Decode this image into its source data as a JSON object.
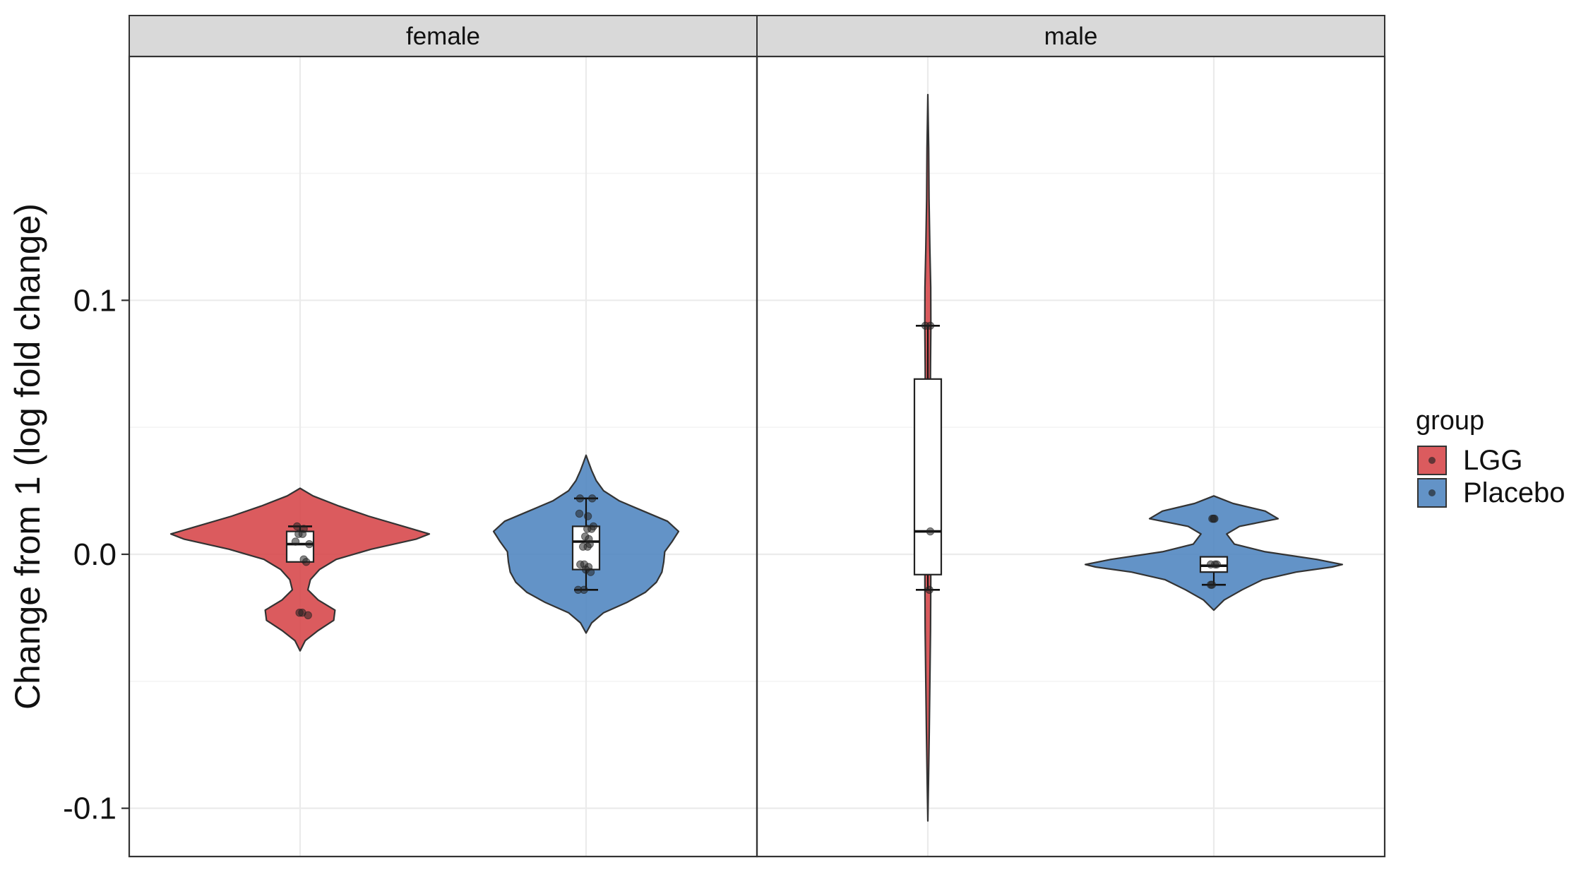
{
  "chart_data": {
    "type": "violin",
    "ylabel": "Change from 1 (log fold change)",
    "y_ticks": [
      -0.1,
      0.0,
      0.1
    ],
    "y_tick_labels": [
      "-0.1",
      "0.0",
      "0.1"
    ],
    "ylim": [
      -0.119,
      0.196
    ],
    "grid": true,
    "facets": [
      "female",
      "male"
    ],
    "categories": [
      "LGG",
      "Placebo"
    ],
    "legend": {
      "title": "group",
      "placement": "right",
      "entries": [
        {
          "label": "LGG",
          "color": "#d7494d"
        },
        {
          "label": "Placebo",
          "color": "#5287c1"
        }
      ]
    },
    "colors": {
      "LGG": "#d7494d",
      "Placebo": "#5287c1",
      "strip_fill": "#d9d9d9",
      "grid": "#ebebeb",
      "panel_border": "#333333"
    },
    "panels": [
      {
        "facet": "female",
        "groups": [
          {
            "name": "LGG",
            "violin": [
              [
                -0.038,
                0.0
              ],
              [
                -0.034,
                0.04
              ],
              [
                -0.03,
                0.14
              ],
              [
                -0.026,
                0.26
              ],
              [
                -0.022,
                0.27
              ],
              [
                -0.018,
                0.14
              ],
              [
                -0.014,
                0.06
              ],
              [
                -0.01,
                0.08
              ],
              [
                -0.006,
                0.15
              ],
              [
                -0.002,
                0.28
              ],
              [
                0.002,
                0.55
              ],
              [
                0.006,
                0.9
              ],
              [
                0.008,
                1.0
              ],
              [
                0.011,
                0.8
              ],
              [
                0.015,
                0.53
              ],
              [
                0.019,
                0.3
              ],
              [
                0.023,
                0.1
              ],
              [
                0.026,
                0.0
              ]
            ],
            "box": {
              "q1": -0.003,
              "median": 0.004,
              "q3": 0.009,
              "lower": 0.004,
              "upper": 0.011
            },
            "points": [
              {
                "y": 0.011,
                "j": -0.1
              },
              {
                "y": 0.01,
                "j": 0.12
              },
              {
                "y": 0.008,
                "j": -0.05
              },
              {
                "y": 0.008,
                "j": 0.08
              },
              {
                "y": 0.005,
                "j": -0.15
              },
              {
                "y": 0.004,
                "j": 0.3
              },
              {
                "y": -0.002,
                "j": 0.12
              },
              {
                "y": -0.003,
                "j": 0.2
              },
              {
                "y": -0.023,
                "j": -0.02
              },
              {
                "y": -0.023,
                "j": 0.07
              },
              {
                "y": -0.024,
                "j": 0.26
              }
            ]
          },
          {
            "name": "Placebo",
            "violin": [
              [
                -0.031,
                0.0
              ],
              [
                -0.027,
                0.06
              ],
              [
                -0.023,
                0.19
              ],
              [
                -0.019,
                0.44
              ],
              [
                -0.015,
                0.64
              ],
              [
                -0.011,
                0.76
              ],
              [
                -0.007,
                0.82
              ],
              [
                -0.003,
                0.84
              ],
              [
                0.001,
                0.85
              ],
              [
                0.005,
                0.93
              ],
              [
                0.009,
                1.0
              ],
              [
                0.013,
                0.88
              ],
              [
                0.017,
                0.62
              ],
              [
                0.021,
                0.36
              ],
              [
                0.025,
                0.19
              ],
              [
                0.029,
                0.11
              ],
              [
                0.033,
                0.06
              ],
              [
                0.036,
                0.03
              ],
              [
                0.039,
                0.0
              ]
            ],
            "box": {
              "q1": -0.006,
              "median": 0.005,
              "q3": 0.011,
              "lower": -0.014,
              "upper": 0.022
            },
            "points": [
              {
                "y": 0.022,
                "j": -0.2
              },
              {
                "y": 0.022,
                "j": 0.2
              },
              {
                "y": 0.016,
                "j": -0.22
              },
              {
                "y": 0.015,
                "j": 0.06
              },
              {
                "y": 0.011,
                "j": 0.24
              },
              {
                "y": 0.01,
                "j": 0.18
              },
              {
                "y": 0.01,
                "j": 0.04
              },
              {
                "y": 0.007,
                "j": -0.03
              },
              {
                "y": 0.006,
                "j": 0.09
              },
              {
                "y": 0.004,
                "j": 0.12
              },
              {
                "y": 0.003,
                "j": -0.1
              },
              {
                "y": 0.003,
                "j": 0.05
              },
              {
                "y": -0.004,
                "j": -0.19
              },
              {
                "y": -0.004,
                "j": -0.06
              },
              {
                "y": -0.005,
                "j": 0.08
              },
              {
                "y": -0.006,
                "j": -0.01
              },
              {
                "y": -0.007,
                "j": 0.15
              },
              {
                "y": -0.014,
                "j": -0.26
              },
              {
                "y": -0.014,
                "j": -0.07
              }
            ]
          }
        ]
      },
      {
        "facet": "male",
        "groups": [
          {
            "name": "LGG",
            "violin": [
              [
                -0.105,
                0.0
              ],
              [
                -0.09,
                0.03
              ],
              [
                -0.07,
                0.07
              ],
              [
                -0.05,
                0.1
              ],
              [
                -0.03,
                0.13
              ],
              [
                -0.015,
                0.14
              ],
              [
                0.0,
                0.15
              ],
              [
                0.009,
                0.15
              ],
              [
                0.02,
                0.14
              ],
              [
                0.04,
                0.13
              ],
              [
                0.06,
                0.12
              ],
              [
                0.075,
                0.13
              ],
              [
                0.09,
                0.15
              ],
              [
                0.105,
                0.14
              ],
              [
                0.12,
                0.1
              ],
              [
                0.14,
                0.06
              ],
              [
                0.16,
                0.04
              ],
              [
                0.17,
                0.02
              ],
              [
                0.181,
                0.0
              ]
            ],
            "box": {
              "q1": -0.008,
              "median": 0.009,
              "q3": 0.069,
              "lower": -0.014,
              "upper": 0.09
            },
            "points": [
              {
                "y": 0.09,
                "j": -0.08
              },
              {
                "y": 0.09,
                "j": 0.08
              },
              {
                "y": 0.009,
                "j": 0.08
              },
              {
                "y": -0.014,
                "j": 0.05
              }
            ]
          },
          {
            "name": "Placebo",
            "violin": [
              [
                -0.022,
                0.0
              ],
              [
                -0.018,
                0.08
              ],
              [
                -0.014,
                0.22
              ],
              [
                -0.01,
                0.38
              ],
              [
                -0.007,
                0.64
              ],
              [
                -0.005,
                0.92
              ],
              [
                -0.004,
                1.0
              ],
              [
                -0.002,
                0.8
              ],
              [
                0.001,
                0.4
              ],
              [
                0.004,
                0.16
              ],
              [
                0.008,
                0.1
              ],
              [
                0.011,
                0.2
              ],
              [
                0.014,
                0.5
              ],
              [
                0.017,
                0.4
              ],
              [
                0.02,
                0.15
              ],
              [
                0.023,
                0.0
              ]
            ],
            "box": {
              "q1": -0.007,
              "median": -0.0045,
              "q3": -0.001,
              "lower": -0.012,
              "upper": -0.004
            },
            "points": [
              {
                "y": 0.014,
                "j": -0.05
              },
              {
                "y": 0.014,
                "j": -0.01
              },
              {
                "y": 0.014,
                "j": 0.02
              },
              {
                "y": -0.004,
                "j": -0.1
              },
              {
                "y": -0.004,
                "j": 0.04
              },
              {
                "y": -0.004,
                "j": 0.1
              },
              {
                "y": -0.012,
                "j": -0.1
              },
              {
                "y": -0.012,
                "j": -0.06
              }
            ]
          }
        ]
      }
    ]
  }
}
